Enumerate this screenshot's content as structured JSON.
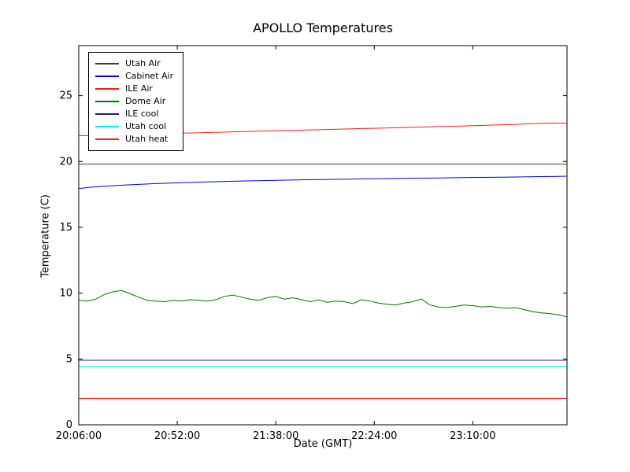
{
  "chart_data": {
    "type": "line",
    "title": "APOLLO Temperatures",
    "xlabel": "Date (GMT)",
    "ylabel": "Temperature (C)",
    "grid": false,
    "legend_position": "upper-left",
    "xlim_minutes": [
      0,
      228
    ],
    "ylim": [
      0,
      28.8
    ],
    "xticks": [
      {
        "minute": 0,
        "label": "20:06:00"
      },
      {
        "minute": 46,
        "label": "20:52:00"
      },
      {
        "minute": 92,
        "label": "21:38:00"
      },
      {
        "minute": 138,
        "label": "22:24:00"
      },
      {
        "minute": 184,
        "label": "23:10:00"
      }
    ],
    "yticks": [
      {
        "value": 0,
        "label": "0"
      },
      {
        "value": 5,
        "label": "5"
      },
      {
        "value": 10,
        "label": "10"
      },
      {
        "value": 15,
        "label": "15"
      },
      {
        "value": 20,
        "label": "20"
      },
      {
        "value": 25,
        "label": "25"
      }
    ],
    "x_minutes": [
      0,
      6,
      12,
      18,
      24,
      30,
      36,
      42,
      48,
      54,
      60,
      66,
      72,
      78,
      84,
      90,
      96,
      102,
      108,
      114,
      120,
      126,
      132,
      138,
      144,
      150,
      156,
      162,
      168,
      174,
      180,
      186,
      192,
      198,
      204,
      210,
      216,
      222,
      228
    ],
    "series": [
      {
        "name": "Utah Air",
        "color": "#3a3a3a",
        "x": [
          0,
          228
        ],
        "values": [
          19.8,
          19.8
        ]
      },
      {
        "name": "Cabinet Air",
        "color": "#0000dd",
        "values": [
          17.95,
          18.05,
          18.12,
          18.18,
          18.23,
          18.28,
          18.32,
          18.36,
          18.39,
          18.42,
          18.45,
          18.47,
          18.5,
          18.52,
          18.54,
          18.56,
          18.58,
          18.6,
          18.62,
          18.63,
          18.65,
          18.66,
          18.68,
          18.69,
          18.7,
          18.72,
          18.73,
          18.74,
          18.75,
          18.76,
          18.78,
          18.79,
          18.8,
          18.81,
          18.82,
          18.84,
          18.85,
          18.86,
          18.88
        ]
      },
      {
        "name": "ILE Air",
        "color": "#ee2222",
        "values": [
          21.95,
          21.98,
          22.0,
          22.02,
          22.05,
          22.07,
          22.1,
          22.12,
          22.15,
          22.17,
          22.2,
          22.22,
          22.25,
          22.27,
          22.3,
          22.32,
          22.35,
          22.37,
          22.4,
          22.42,
          22.45,
          22.47,
          22.5,
          22.52,
          22.55,
          22.57,
          22.6,
          22.62,
          22.65,
          22.67,
          22.7,
          22.73,
          22.76,
          22.79,
          22.82,
          22.86,
          22.9,
          22.92,
          22.9
        ]
      },
      {
        "name": "Dome Air",
        "color": "#007700",
        "x": [
          0,
          4,
          8,
          12,
          16,
          20,
          24,
          28,
          32,
          36,
          40,
          44,
          48,
          52,
          56,
          60,
          64,
          68,
          72,
          76,
          80,
          84,
          88,
          92,
          96,
          100,
          104,
          108,
          112,
          116,
          120,
          124,
          128,
          132,
          136,
          140,
          144,
          148,
          152,
          156,
          160,
          164,
          168,
          172,
          176,
          180,
          184,
          188,
          192,
          196,
          200,
          204,
          208,
          212,
          216,
          220,
          224,
          228
        ],
        "values": [
          9.45,
          9.4,
          9.55,
          9.9,
          10.1,
          10.2,
          9.95,
          9.7,
          9.45,
          9.4,
          9.35,
          9.45,
          9.4,
          9.5,
          9.45,
          9.4,
          9.5,
          9.75,
          9.85,
          9.7,
          9.55,
          9.45,
          9.65,
          9.75,
          9.55,
          9.65,
          9.5,
          9.35,
          9.5,
          9.3,
          9.4,
          9.35,
          9.2,
          9.5,
          9.4,
          9.25,
          9.15,
          9.1,
          9.25,
          9.35,
          9.55,
          9.1,
          8.95,
          8.9,
          9.0,
          9.1,
          9.05,
          8.95,
          9.0,
          8.9,
          8.85,
          8.9,
          8.75,
          8.6,
          8.5,
          8.45,
          8.35,
          8.2
        ]
      },
      {
        "name": "ILE cool",
        "color": "#202070",
        "x": [
          0,
          228
        ],
        "values": [
          4.9,
          4.9
        ]
      },
      {
        "name": "Utah cool",
        "color": "#00eeee",
        "x": [
          0,
          228
        ],
        "values": [
          4.45,
          4.45
        ]
      },
      {
        "name": "Utah heat",
        "color": "#ee2222",
        "x": [
          0,
          228
        ],
        "values": [
          2.0,
          2.0
        ]
      }
    ]
  }
}
